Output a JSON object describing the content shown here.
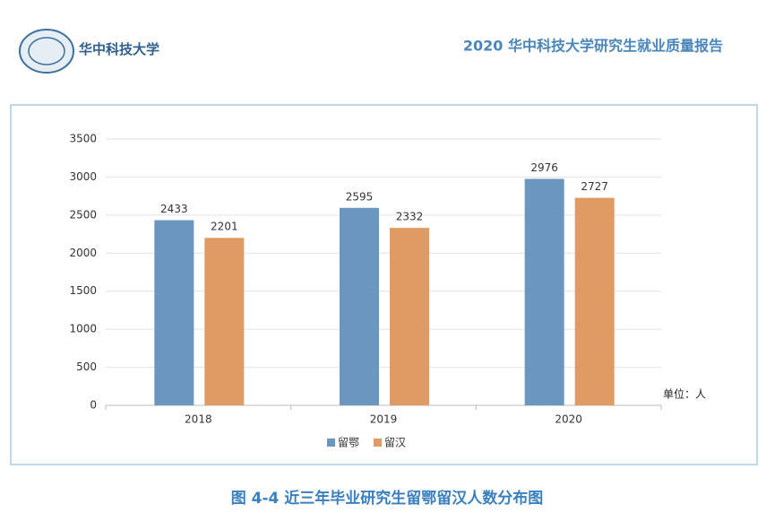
{
  "header": {
    "logo_text": "华中科技大学",
    "title": "2020 华中科技大学研究生就业质量报告"
  },
  "chart_data": {
    "type": "bar",
    "title": "图 4-4  近三年毕业研究生留鄂留汉人数分布图",
    "unit_label": "单位：人",
    "categories": [
      "2018",
      "2019",
      "2020"
    ],
    "series": [
      {
        "name": "留鄂",
        "color": "#6a96c0",
        "values": [
          2433,
          2595,
          2976
        ]
      },
      {
        "name": "留汉",
        "color": "#e09b64",
        "values": [
          2201,
          2332,
          2727
        ]
      }
    ],
    "ylim": [
      0,
      3500
    ],
    "yticks": [
      0,
      500,
      1000,
      1500,
      2000,
      2500,
      3000,
      3500
    ],
    "grid": true,
    "legend": "bottom"
  }
}
